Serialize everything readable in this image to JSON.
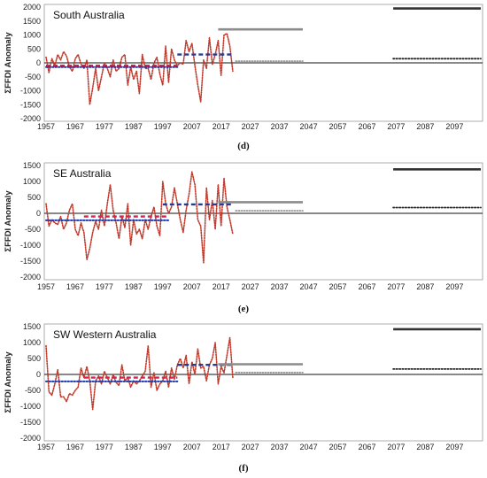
{
  "chart_data": [
    {
      "type": "line",
      "title": "South Australia",
      "ylabel": "ΣFFDI Anomaly",
      "xlabel": "",
      "panel_label": "(d)",
      "x_ticks": [
        "1957",
        "1967",
        "1977",
        "1987",
        "1997",
        "2007",
        "2017",
        "2027",
        "2037",
        "2047",
        "2057",
        "2067",
        "2077",
        "2087",
        "2097"
      ],
      "y_ticks": [
        "2000",
        "1500",
        "1000",
        "500",
        "0",
        "-500",
        "-1000",
        "-1500",
        "-2000"
      ],
      "ylim": [
        -2000,
        2000
      ],
      "xlim": [
        1957,
        2106
      ],
      "grid": false,
      "series": [
        {
          "style": "dotted-red",
          "x": [
            1957,
            1958,
            1959,
            1960,
            1961,
            1962,
            1963,
            1964,
            1965,
            1966,
            1967,
            1968,
            1969,
            1970,
            1971,
            1972,
            1973,
            1974,
            1975,
            1976,
            1977,
            1978,
            1979,
            1980,
            1981,
            1982,
            1983,
            1984,
            1985,
            1986,
            1987,
            1988,
            1989,
            1990,
            1991,
            1992,
            1993,
            1994,
            1995,
            1996,
            1997,
            1998,
            1999,
            2000,
            2001,
            2002,
            2003,
            2004,
            2005,
            2006,
            2007,
            2008,
            2009,
            2010,
            2011,
            2012,
            2013,
            2014,
            2015,
            2016,
            2017,
            2018,
            2019,
            2020,
            2021
          ],
          "values": [
            200,
            -350,
            150,
            -100,
            300,
            100,
            400,
            250,
            -150,
            -300,
            150,
            300,
            -50,
            -200,
            100,
            -1500,
            -900,
            -200,
            -1000,
            -500,
            0,
            -200,
            -500,
            100,
            -300,
            -200,
            200,
            300,
            -800,
            -150,
            -600,
            -300,
            -1100,
            300,
            -200,
            -200,
            -600,
            0,
            200,
            -400,
            -800,
            600,
            -700,
            500,
            100,
            -100,
            0,
            -50,
            800,
            400,
            700,
            -100,
            -800,
            -1400,
            100,
            -200,
            900,
            -50,
            300,
            800,
            -450,
            1000,
            1050,
            600,
            -300
          ]
        },
        {
          "style": "dashed-crimson",
          "x": [
            1957,
            2002
          ],
          "values": [
            -100,
            -100
          ]
        },
        {
          "style": "dotted-navy",
          "x": [
            1957,
            2002
          ],
          "values": [
            -150,
            -150
          ]
        },
        {
          "style": "dashed-navy",
          "x": [
            2002,
            2021
          ],
          "values": [
            300,
            300
          ]
        },
        {
          "style": "solid-gray",
          "x": [
            2016,
            2045
          ],
          "values": [
            1200,
            1200
          ]
        },
        {
          "style": "dotted-gray",
          "x": [
            2022,
            2045
          ],
          "values": [
            60,
            60
          ]
        },
        {
          "style": "solid-black",
          "x": [
            2076,
            2106
          ],
          "values": [
            1950,
            1950
          ]
        },
        {
          "style": "dotted-black",
          "x": [
            2076,
            2106
          ],
          "values": [
            150,
            150
          ]
        }
      ]
    },
    {
      "type": "line",
      "title": "SE Australia",
      "ylabel": "ΣFFDI Anomaly",
      "xlabel": "",
      "panel_label": "(e)",
      "x_ticks": [
        "1957",
        "1967",
        "1977",
        "1987",
        "1997",
        "2007",
        "2017",
        "2027",
        "2037",
        "2047",
        "2057",
        "2067",
        "2077",
        "2087",
        "2097"
      ],
      "y_ticks": [
        "1500",
        "1000",
        "500",
        "0",
        "-500",
        "-1000",
        "-1500",
        "-2000"
      ],
      "ylim": [
        -2000,
        1500
      ],
      "xlim": [
        1957,
        2106
      ],
      "grid": false,
      "series": [
        {
          "style": "dotted-red",
          "x": [
            1957,
            1958,
            1959,
            1960,
            1961,
            1962,
            1963,
            1964,
            1965,
            1966,
            1967,
            1968,
            1969,
            1970,
            1971,
            1972,
            1973,
            1974,
            1975,
            1976,
            1977,
            1978,
            1979,
            1980,
            1981,
            1982,
            1983,
            1984,
            1985,
            1986,
            1987,
            1988,
            1989,
            1990,
            1991,
            1992,
            1993,
            1994,
            1995,
            1996,
            1997,
            1998,
            1999,
            2000,
            2001,
            2002,
            2003,
            2004,
            2005,
            2006,
            2007,
            2008,
            2009,
            2010,
            2011,
            2012,
            2013,
            2014,
            2015,
            2016,
            2017,
            2018,
            2019,
            2020,
            2021
          ],
          "values": [
            300,
            -400,
            -200,
            -300,
            -350,
            -100,
            -500,
            -300,
            100,
            300,
            -500,
            -700,
            -300,
            -600,
            -1450,
            -1100,
            -600,
            -250,
            -500,
            100,
            -400,
            300,
            900,
            100,
            -300,
            -800,
            -100,
            -450,
            300,
            -1000,
            -200,
            -650,
            -500,
            -800,
            -200,
            -500,
            -100,
            200,
            -400,
            -700,
            1000,
            300,
            0,
            200,
            800,
            300,
            -200,
            -600,
            100,
            600,
            1300,
            900,
            -200,
            -400,
            -1550,
            800,
            -200,
            400,
            -500,
            900,
            -400,
            1100,
            200,
            -200,
            -650
          ]
        },
        {
          "style": "dashed-crimson",
          "x": [
            1970,
            1999
          ],
          "values": [
            -100,
            -100
          ]
        },
        {
          "style": "dotted-navy",
          "x": [
            1957,
            1999
          ],
          "values": [
            -220,
            -220
          ]
        },
        {
          "style": "dashed-navy",
          "x": [
            1997,
            2021
          ],
          "values": [
            280,
            280
          ]
        },
        {
          "style": "solid-gray",
          "x": [
            2016,
            2045
          ],
          "values": [
            350,
            350
          ]
        },
        {
          "style": "dotted-gray",
          "x": [
            2022,
            2045
          ],
          "values": [
            80,
            80
          ]
        },
        {
          "style": "solid-black",
          "x": [
            2076,
            2106
          ],
          "values": [
            1380,
            1380
          ]
        },
        {
          "style": "dotted-black",
          "x": [
            2076,
            2106
          ],
          "values": [
            180,
            180
          ]
        }
      ]
    },
    {
      "type": "line",
      "title": "SW Western Australia",
      "ylabel": "ΣFFDI Anomaly",
      "xlabel": "",
      "panel_label": "(f)",
      "x_ticks": [
        "1957",
        "1967",
        "1977",
        "1987",
        "1997",
        "2007",
        "2017",
        "2027",
        "2037",
        "2047",
        "2057",
        "2067",
        "2077",
        "2087",
        "2097"
      ],
      "y_ticks": [
        "1500",
        "1000",
        "500",
        "0",
        "-500",
        "-1000",
        "-1500",
        "-2000"
      ],
      "ylim": [
        -2000,
        1500
      ],
      "xlim": [
        1957,
        2106
      ],
      "grid": false,
      "series": [
        {
          "style": "dotted-red",
          "x": [
            1957,
            1958,
            1959,
            1960,
            1961,
            1962,
            1963,
            1964,
            1965,
            1966,
            1967,
            1968,
            1969,
            1970,
            1971,
            1972,
            1973,
            1974,
            1975,
            1976,
            1977,
            1978,
            1979,
            1980,
            1981,
            1982,
            1983,
            1984,
            1985,
            1986,
            1987,
            1988,
            1989,
            1990,
            1991,
            1992,
            1993,
            1994,
            1995,
            1996,
            1997,
            1998,
            1999,
            2000,
            2001,
            2002,
            2003,
            2004,
            2005,
            2006,
            2007,
            2008,
            2009,
            2010,
            2011,
            2012,
            2013,
            2014,
            2015,
            2016,
            2017,
            2018,
            2019,
            2020,
            2021
          ],
          "values": [
            900,
            -550,
            -650,
            -300,
            150,
            -700,
            -700,
            -850,
            -600,
            -650,
            -500,
            -400,
            200,
            -100,
            250,
            -200,
            -1100,
            -200,
            -50,
            -300,
            100,
            -100,
            -300,
            0,
            -250,
            -350,
            300,
            -200,
            -100,
            -400,
            -200,
            -300,
            -200,
            -50,
            100,
            900,
            -400,
            50,
            -500,
            -300,
            -200,
            100,
            -400,
            200,
            -150,
            300,
            500,
            200,
            600,
            -300,
            400,
            0,
            800,
            200,
            250,
            -200,
            300,
            500,
            1000,
            -300,
            250,
            50,
            600,
            1150,
            -100
          ]
        },
        {
          "style": "dashed-crimson",
          "x": [
            1970,
            2002
          ],
          "values": [
            -100,
            -100
          ]
        },
        {
          "style": "dotted-navy",
          "x": [
            1957,
            2002
          ],
          "values": [
            -220,
            -220
          ]
        },
        {
          "style": "dashed-navy",
          "x": [
            2002,
            2021
          ],
          "values": [
            300,
            300
          ]
        },
        {
          "style": "solid-gray",
          "x": [
            2016,
            2045
          ],
          "values": [
            320,
            320
          ]
        },
        {
          "style": "dotted-gray",
          "x": [
            2022,
            2045
          ],
          "values": [
            60,
            60
          ]
        },
        {
          "style": "solid-black",
          "x": [
            2076,
            2106
          ],
          "values": [
            1420,
            1420
          ]
        },
        {
          "style": "dotted-black",
          "x": [
            2076,
            2106
          ],
          "values": [
            170,
            170
          ]
        }
      ]
    }
  ],
  "colors": {
    "dotted-red": "#c0392b",
    "dashed-crimson": "#d62050",
    "dotted-navy": "#1f3aa6",
    "dashed-navy": "#243c8f",
    "solid-gray": "#8c8c8c",
    "dotted-gray": "#8c8c8c",
    "solid-black": "#333333",
    "dotted-black": "#222222"
  }
}
